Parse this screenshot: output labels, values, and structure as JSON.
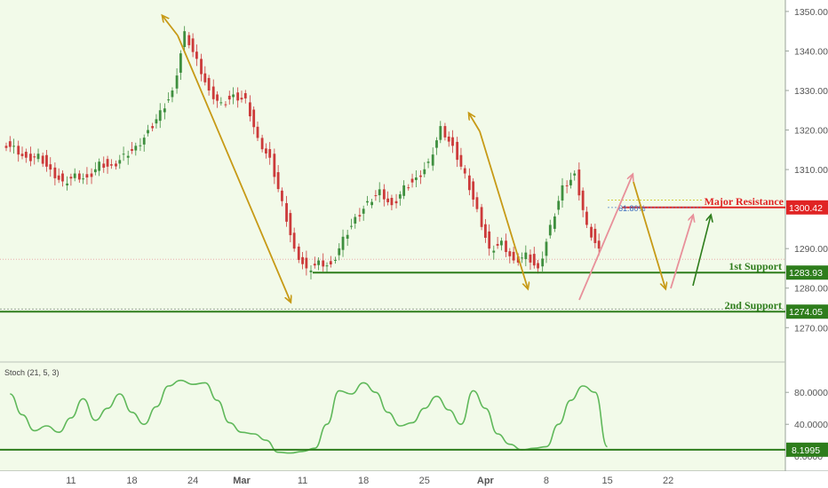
{
  "chart_data": [
    {
      "type": "candlestick",
      "title": "",
      "xlabel": "",
      "ylabel": "",
      "ylim": [
        1264,
        1352
      ],
      "y_ticks": [
        1350,
        1340,
        1330,
        1320,
        1310,
        1290,
        1280,
        1270
      ],
      "y_tick_labels": [
        "1350.00",
        "1340.00",
        "1330.00",
        "1320.00",
        "1310.00",
        "1290.00",
        "1280.00",
        "1270.00"
      ],
      "x_range_day_index": [
        0,
        47
      ],
      "x_ticks": [
        {
          "day": 5,
          "label": "11"
        },
        {
          "day": 10,
          "label": "18"
        },
        {
          "day": 15,
          "label": "24"
        },
        {
          "day": 19,
          "label": "Mar"
        },
        {
          "day": 24,
          "label": "11"
        },
        {
          "day": 29,
          "label": "18"
        },
        {
          "day": 34,
          "label": "25"
        },
        {
          "day": 39,
          "label": "Apr"
        },
        {
          "day": 44,
          "label": "8"
        },
        {
          "day": 49,
          "label": "15"
        },
        {
          "day": 54,
          "label": "22"
        }
      ],
      "candles_close": [
        1316,
        1313,
        1314,
        1310,
        1307,
        1309,
        1308,
        1312,
        1311,
        1314,
        1316,
        1320,
        1325,
        1330,
        1345,
        1338,
        1330,
        1327,
        1329,
        1328,
        1318,
        1313,
        1302,
        1290,
        1285,
        1287,
        1286,
        1293,
        1298,
        1302,
        1305,
        1301,
        1306,
        1308,
        1312,
        1321,
        1316,
        1309,
        1300,
        1290,
        1292,
        1287,
        1289,
        1285,
        1296,
        1306,
        1309,
        1296,
        1290
      ],
      "levels": [
        {
          "label": "Major Resistance",
          "value": 1300.42,
          "value_label": "1300.42",
          "color": "#e02424"
        },
        {
          "label": "1st Support",
          "value": 1283.93,
          "value_label": "1283.93",
          "color": "#2e7d1c"
        },
        {
          "label": "2nd Support",
          "value": 1274.05,
          "value_label": "1274.05",
          "color": "#2e7d1c"
        }
      ],
      "fib_label": "61.80%",
      "current_price": 1287.3
    },
    {
      "type": "line",
      "title": "Stoch (21, 5, 3)",
      "ylim": [
        -2,
        108
      ],
      "y_ticks": [
        80,
        40,
        0
      ],
      "y_tick_labels": [
        "80.0000",
        "40.0000",
        "0.0000"
      ],
      "level": {
        "value": 8.1995,
        "value_label": "8.1995",
        "color": "#2e7d1c"
      },
      "series_color": "#5fb85a",
      "values": [
        78,
        52,
        32,
        38,
        30,
        48,
        72,
        45,
        60,
        78,
        55,
        40,
        62,
        88,
        95,
        90,
        92,
        70,
        42,
        30,
        28,
        20,
        5,
        4,
        6,
        10,
        40,
        82,
        78,
        92,
        80,
        55,
        38,
        42,
        60,
        75,
        58,
        40,
        82,
        60,
        28,
        15,
        8,
        10,
        12,
        40,
        70,
        88,
        80,
        12
      ]
    }
  ]
}
